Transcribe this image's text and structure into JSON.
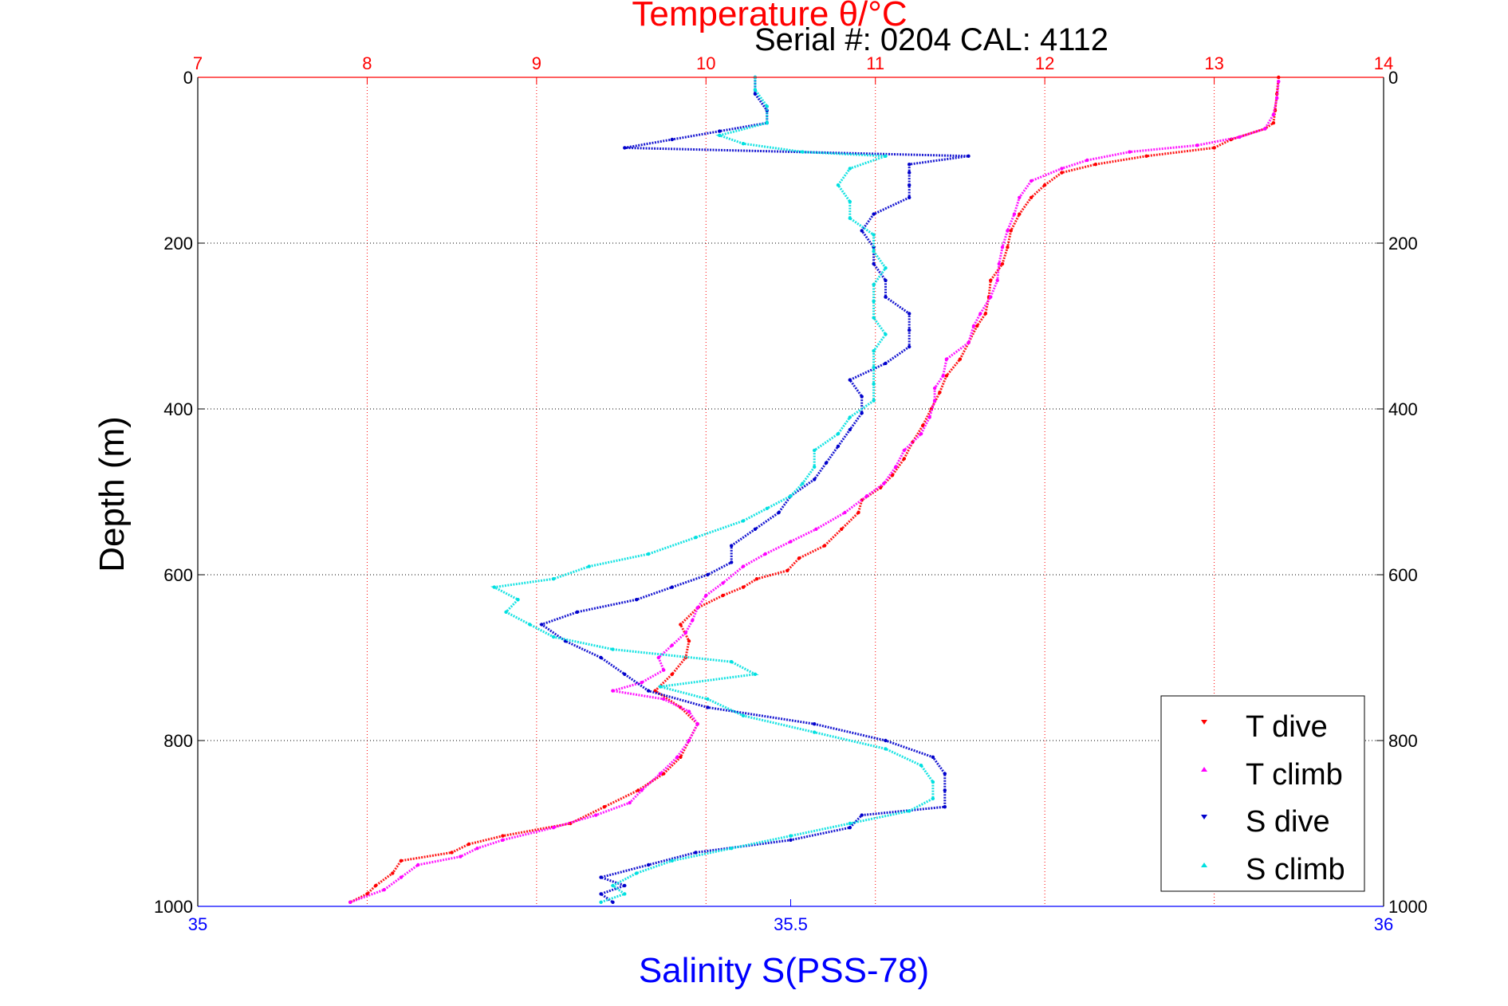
{
  "chart_data": {
    "type": "scatter",
    "title": "Temperature θ/°C",
    "subtitle": "Serial #: 0204  CAL: 4112",
    "ylabel": "Depth (m)",
    "xlabel_bottom": "Salinity S(PSS-78)",
    "xlabel_top": "Temperature θ/°C",
    "ylim": [
      0,
      1000
    ],
    "y_reversed": true,
    "xlim_top": [
      7,
      14
    ],
    "xlim_bottom": [
      35,
      36
    ],
    "yticks": [
      "0",
      "200",
      "400",
      "600",
      "800",
      "1000"
    ],
    "xticks_top": [
      "7",
      "8",
      "9",
      "10",
      "11",
      "12",
      "13",
      "14"
    ],
    "xticks_bottom": [
      "35",
      "35.5",
      "36"
    ],
    "grid": true,
    "legend": "bottom-right",
    "colors": {
      "temperature_axis": "#ff0000",
      "salinity_axis": "#0000ff",
      "T dive": "#ff0000",
      "T climb": "#ff00ff",
      "S dive": "#0000cc",
      "S climb": "#00e0e0"
    },
    "series": [
      {
        "name": "T dive",
        "axis": "temperature",
        "points": [
          [
            0,
            13.38
          ],
          [
            20,
            13.37
          ],
          [
            40,
            13.36
          ],
          [
            55,
            13.35
          ],
          [
            62,
            13.3
          ],
          [
            75,
            13.1
          ],
          [
            85,
            13.0
          ],
          [
            95,
            12.6
          ],
          [
            105,
            12.3
          ],
          [
            115,
            12.1
          ],
          [
            130,
            12.0
          ],
          [
            145,
            11.92
          ],
          [
            165,
            11.85
          ],
          [
            185,
            11.8
          ],
          [
            205,
            11.78
          ],
          [
            225,
            11.75
          ],
          [
            245,
            11.68
          ],
          [
            265,
            11.67
          ],
          [
            285,
            11.65
          ],
          [
            300,
            11.6
          ],
          [
            320,
            11.55
          ],
          [
            340,
            11.5
          ],
          [
            360,
            11.42
          ],
          [
            380,
            11.38
          ],
          [
            400,
            11.33
          ],
          [
            420,
            11.28
          ],
          [
            440,
            11.22
          ],
          [
            460,
            11.17
          ],
          [
            480,
            11.1
          ],
          [
            495,
            11.03
          ],
          [
            510,
            10.92
          ],
          [
            525,
            10.9
          ],
          [
            545,
            10.8
          ],
          [
            565,
            10.7
          ],
          [
            580,
            10.55
          ],
          [
            595,
            10.48
          ],
          [
            605,
            10.3
          ],
          [
            615,
            10.22
          ],
          [
            625,
            10.1
          ],
          [
            640,
            9.95
          ],
          [
            660,
            9.85
          ],
          [
            680,
            9.9
          ],
          [
            700,
            9.88
          ],
          [
            720,
            9.8
          ],
          [
            740,
            9.7
          ],
          [
            760,
            9.85
          ],
          [
            780,
            9.95
          ],
          [
            800,
            9.9
          ],
          [
            820,
            9.85
          ],
          [
            840,
            9.75
          ],
          [
            860,
            9.6
          ],
          [
            880,
            9.4
          ],
          [
            900,
            9.2
          ],
          [
            915,
            8.8
          ],
          [
            925,
            8.6
          ],
          [
            935,
            8.5
          ],
          [
            945,
            8.2
          ],
          [
            960,
            8.15
          ],
          [
            975,
            8.05
          ],
          [
            985,
            8.0
          ],
          [
            995,
            7.9
          ]
        ]
      },
      {
        "name": "T climb",
        "axis": "temperature",
        "points": [
          [
            995,
            7.9
          ],
          [
            980,
            8.1
          ],
          [
            965,
            8.2
          ],
          [
            950,
            8.3
          ],
          [
            940,
            8.55
          ],
          [
            930,
            8.65
          ],
          [
            920,
            8.8
          ],
          [
            905,
            9.1
          ],
          [
            890,
            9.35
          ],
          [
            875,
            9.55
          ],
          [
            860,
            9.62
          ],
          [
            840,
            9.73
          ],
          [
            820,
            9.83
          ],
          [
            800,
            9.9
          ],
          [
            780,
            9.95
          ],
          [
            765,
            9.9
          ],
          [
            750,
            9.75
          ],
          [
            740,
            9.45
          ],
          [
            730,
            9.62
          ],
          [
            715,
            9.75
          ],
          [
            700,
            9.72
          ],
          [
            685,
            9.8
          ],
          [
            670,
            9.88
          ],
          [
            655,
            9.92
          ],
          [
            640,
            9.95
          ],
          [
            625,
            10.0
          ],
          [
            610,
            10.1
          ],
          [
            590,
            10.22
          ],
          [
            575,
            10.35
          ],
          [
            560,
            10.5
          ],
          [
            545,
            10.65
          ],
          [
            525,
            10.82
          ],
          [
            505,
            10.95
          ],
          [
            490,
            11.05
          ],
          [
            470,
            11.12
          ],
          [
            450,
            11.17
          ],
          [
            430,
            11.27
          ],
          [
            410,
            11.32
          ],
          [
            390,
            11.35
          ],
          [
            375,
            11.35
          ],
          [
            360,
            11.4
          ],
          [
            340,
            11.42
          ],
          [
            320,
            11.55
          ],
          [
            300,
            11.58
          ],
          [
            285,
            11.62
          ],
          [
            265,
            11.68
          ],
          [
            245,
            11.72
          ],
          [
            225,
            11.73
          ],
          [
            205,
            11.75
          ],
          [
            185,
            11.78
          ],
          [
            165,
            11.82
          ],
          [
            145,
            11.85
          ],
          [
            125,
            11.92
          ],
          [
            110,
            12.1
          ],
          [
            100,
            12.25
          ],
          [
            90,
            12.5
          ],
          [
            82,
            12.9
          ],
          [
            72,
            13.15
          ],
          [
            62,
            13.3
          ],
          [
            45,
            13.35
          ],
          [
            25,
            13.37
          ],
          [
            5,
            13.38
          ]
        ]
      },
      {
        "name": "S dive",
        "axis": "salinity",
        "points": [
          [
            0,
            35.47
          ],
          [
            20,
            35.47
          ],
          [
            40,
            35.48
          ],
          [
            55,
            35.48
          ],
          [
            65,
            35.44
          ],
          [
            75,
            35.4
          ],
          [
            85,
            35.36
          ],
          [
            95,
            35.65
          ],
          [
            105,
            35.6
          ],
          [
            115,
            35.6
          ],
          [
            130,
            35.6
          ],
          [
            145,
            35.6
          ],
          [
            165,
            35.57
          ],
          [
            185,
            35.56
          ],
          [
            205,
            35.57
          ],
          [
            225,
            35.57
          ],
          [
            245,
            35.58
          ],
          [
            265,
            35.58
          ],
          [
            285,
            35.6
          ],
          [
            305,
            35.6
          ],
          [
            325,
            35.6
          ],
          [
            345,
            35.58
          ],
          [
            365,
            35.55
          ],
          [
            385,
            35.56
          ],
          [
            405,
            35.56
          ],
          [
            425,
            35.55
          ],
          [
            445,
            35.54
          ],
          [
            465,
            35.53
          ],
          [
            485,
            35.52
          ],
          [
            505,
            35.5
          ],
          [
            525,
            35.49
          ],
          [
            545,
            35.47
          ],
          [
            565,
            35.45
          ],
          [
            585,
            35.45
          ],
          [
            600,
            35.43
          ],
          [
            615,
            35.4
          ],
          [
            630,
            35.37
          ],
          [
            645,
            35.32
          ],
          [
            660,
            35.29
          ],
          [
            680,
            35.31
          ],
          [
            700,
            35.34
          ],
          [
            720,
            35.36
          ],
          [
            740,
            35.38
          ],
          [
            760,
            35.43
          ],
          [
            780,
            35.52
          ],
          [
            800,
            35.58
          ],
          [
            820,
            35.62
          ],
          [
            840,
            35.63
          ],
          [
            860,
            35.63
          ],
          [
            880,
            35.63
          ],
          [
            890,
            35.56
          ],
          [
            905,
            35.55
          ],
          [
            920,
            35.5
          ],
          [
            935,
            35.42
          ],
          [
            950,
            35.38
          ],
          [
            965,
            35.34
          ],
          [
            975,
            35.36
          ],
          [
            985,
            35.34
          ],
          [
            995,
            35.35
          ]
        ]
      },
      {
        "name": "S climb",
        "axis": "salinity",
        "points": [
          [
            995,
            35.34
          ],
          [
            985,
            35.36
          ],
          [
            975,
            35.35
          ],
          [
            960,
            35.37
          ],
          [
            945,
            35.4
          ],
          [
            930,
            35.45
          ],
          [
            915,
            35.5
          ],
          [
            900,
            35.55
          ],
          [
            885,
            35.6
          ],
          [
            870,
            35.62
          ],
          [
            850,
            35.62
          ],
          [
            830,
            35.61
          ],
          [
            810,
            35.58
          ],
          [
            790,
            35.52
          ],
          [
            770,
            35.46
          ],
          [
            750,
            35.43
          ],
          [
            735,
            35.39
          ],
          [
            720,
            35.47
          ],
          [
            705,
            35.45
          ],
          [
            690,
            35.35
          ],
          [
            675,
            35.3
          ],
          [
            660,
            35.28
          ],
          [
            645,
            35.26
          ],
          [
            630,
            35.27
          ],
          [
            615,
            35.25
          ],
          [
            605,
            35.3
          ],
          [
            590,
            35.33
          ],
          [
            575,
            35.38
          ],
          [
            555,
            35.42
          ],
          [
            535,
            35.46
          ],
          [
            520,
            35.48
          ],
          [
            505,
            35.5
          ],
          [
            490,
            35.51
          ],
          [
            470,
            35.52
          ],
          [
            450,
            35.52
          ],
          [
            430,
            35.54
          ],
          [
            410,
            35.55
          ],
          [
            390,
            35.57
          ],
          [
            370,
            35.57
          ],
          [
            350,
            35.57
          ],
          [
            330,
            35.57
          ],
          [
            310,
            35.58
          ],
          [
            290,
            35.57
          ],
          [
            270,
            35.57
          ],
          [
            250,
            35.57
          ],
          [
            230,
            35.58
          ],
          [
            210,
            35.57
          ],
          [
            190,
            35.57
          ],
          [
            170,
            35.55
          ],
          [
            150,
            35.55
          ],
          [
            130,
            35.54
          ],
          [
            110,
            35.55
          ],
          [
            95,
            35.58
          ],
          [
            90,
            35.51
          ],
          [
            80,
            35.46
          ],
          [
            70,
            35.44
          ],
          [
            55,
            35.48
          ],
          [
            35,
            35.48
          ],
          [
            15,
            35.47
          ],
          [
            0,
            35.47
          ]
        ]
      }
    ]
  }
}
